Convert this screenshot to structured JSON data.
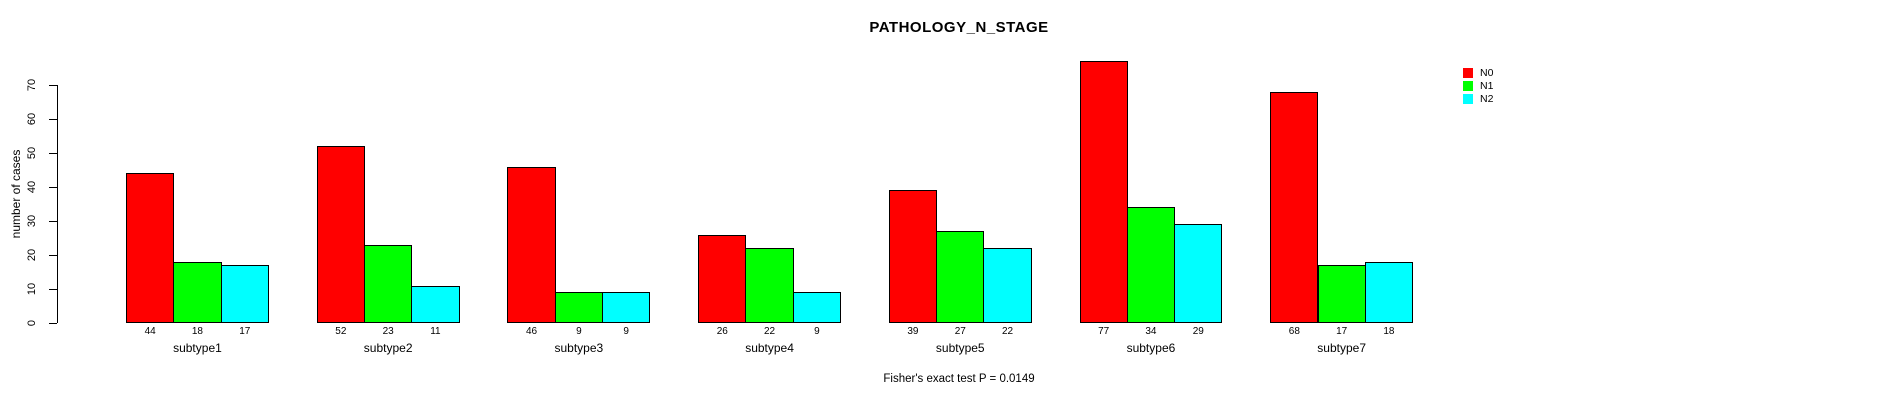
{
  "chart_data": {
    "type": "bar",
    "title": "PATHOLOGY_N_STAGE",
    "categories": [
      "subtype1",
      "subtype2",
      "subtype3",
      "subtype4",
      "subtype5",
      "subtype6",
      "subtype7"
    ],
    "series": [
      {
        "name": "N0",
        "color": "#FF0000",
        "values": [
          44,
          52,
          46,
          26,
          39,
          77,
          68
        ]
      },
      {
        "name": "N1",
        "color": "#00FF00",
        "values": [
          18,
          23,
          9,
          22,
          27,
          34,
          17
        ]
      },
      {
        "name": "N2",
        "color": "#00FFFF",
        "values": [
          17,
          11,
          9,
          9,
          22,
          29,
          18
        ]
      }
    ],
    "xlabel": "",
    "ylabel": "number of cases",
    "yticks": [
      0,
      10,
      20,
      30,
      40,
      50,
      60,
      70
    ],
    "ylim": [
      0,
      70
    ],
    "grid": false,
    "bar_value_labels_shown": true,
    "legend_position": "top-right",
    "bar_border_color": "#000000",
    "background": "#FFFFFF",
    "annotation": "Fisher's exact test P = 0.0149"
  }
}
